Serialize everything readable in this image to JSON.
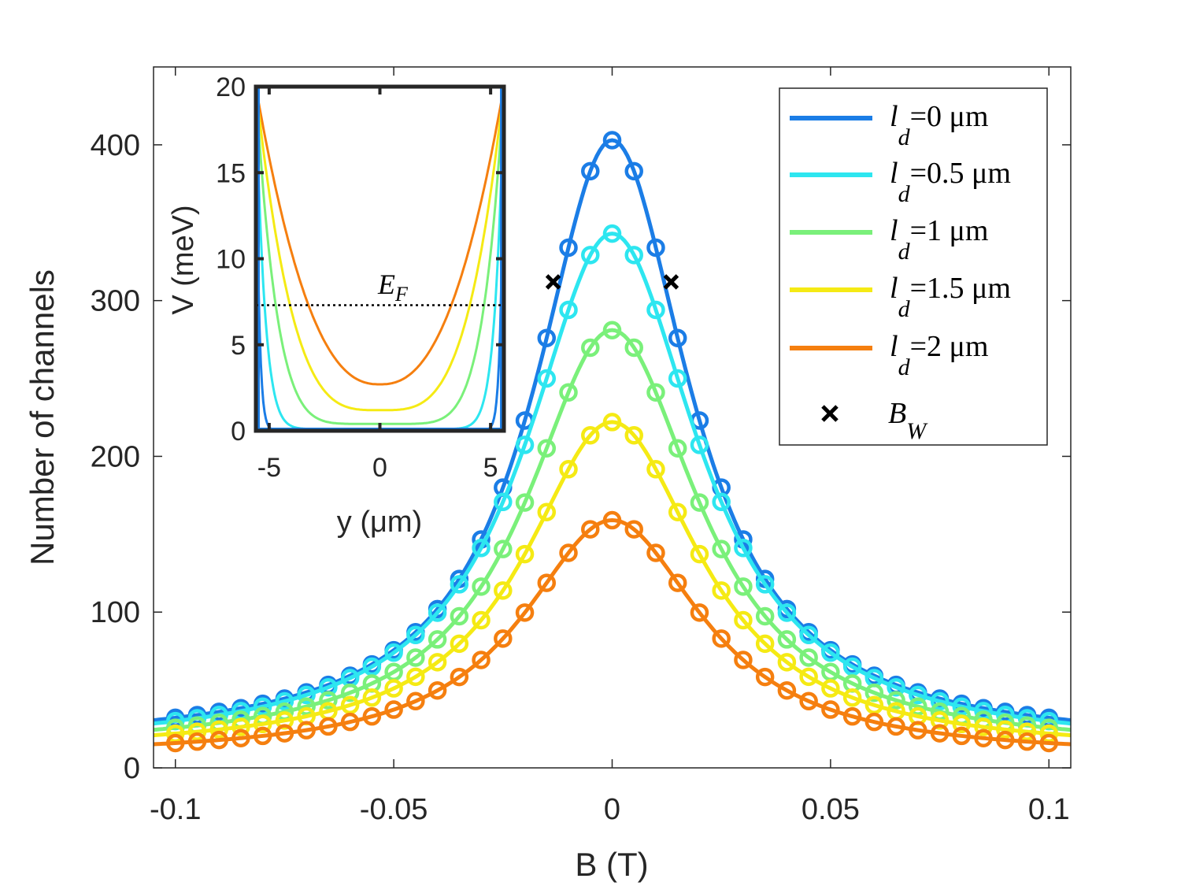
{
  "chart_data": [
    {
      "type": "line",
      "xlabel": "B (T)",
      "ylabel": "Number of channels",
      "xlim": [
        -0.105,
        0.105
      ],
      "ylim": [
        0,
        450
      ],
      "xticks": [
        -0.1,
        -0.05,
        0,
        0.05,
        0.1
      ],
      "xtick_labels": [
        "-0.1",
        "-0.05",
        "0",
        "0.05",
        "0.1"
      ],
      "yticks": [
        0,
        100,
        200,
        300,
        400
      ],
      "ytick_labels": [
        "0",
        "100",
        "200",
        "300",
        "400"
      ],
      "legend_position": "top-right",
      "series": [
        {
          "name": "l_d=0 μm",
          "legend_label": "=0 μm",
          "color": "#1b7de6",
          "peak": 403,
          "width": 0.0215,
          "floor": 15
        },
        {
          "name": "l_d=0.5 μm",
          "legend_label": "=0.5 μm",
          "color": "#2de6f0",
          "peak": 343,
          "width": 0.024,
          "floor": 12
        },
        {
          "name": "l_d=1 μm",
          "legend_label": "=1 μm",
          "color": "#7af07a",
          "peak": 281,
          "width": 0.024,
          "floor": 11
        },
        {
          "name": "l_d=1.5 μm",
          "legend_label": "=1.5 μm",
          "color": "#f5ea14",
          "peak": 222,
          "width": 0.0245,
          "floor": 10
        },
        {
          "name": "l_d=2 μm",
          "legend_label": "=2 μm",
          "color": "#f57f0f",
          "peak": 159,
          "width": 0.025,
          "floor": 7
        }
      ],
      "markers": {
        "name": "B_W",
        "legend_label": "B",
        "legend_sub": "W",
        "points": [
          {
            "x": -0.0135,
            "y": 312
          },
          {
            "x": 0.0135,
            "y": 312
          }
        ]
      }
    },
    {
      "type": "line",
      "xlabel": "y (μm)",
      "ylabel": "V (meV)",
      "xlim": [
        -5.6,
        5.6
      ],
      "ylim": [
        0,
        20
      ],
      "xticks": [
        -5,
        0,
        5
      ],
      "xtick_labels": [
        "-5",
        "0",
        "5"
      ],
      "yticks": [
        0,
        5,
        10,
        15,
        20
      ],
      "ytick_labels": [
        "0",
        "5",
        "10",
        "15",
        "20"
      ],
      "annotation": {
        "label": "E",
        "sub": "F",
        "value": 7.3
      },
      "series": [
        {
          "name": "l_d=0 μm",
          "color": "#1b7de6",
          "min": 0.0,
          "power": 40
        },
        {
          "name": "l_d=0.5 μm",
          "color": "#2de6f0",
          "min": 0.1,
          "power": 14
        },
        {
          "name": "l_d=1 μm",
          "color": "#7af07a",
          "min": 0.4,
          "power": 6
        },
        {
          "name": "l_d=1.5 μm",
          "color": "#f5ea14",
          "min": 1.2,
          "power": 3.5
        },
        {
          "name": "l_d=2 μm",
          "color": "#f57f0f",
          "min": 2.7,
          "power": 2.4
        }
      ]
    }
  ]
}
